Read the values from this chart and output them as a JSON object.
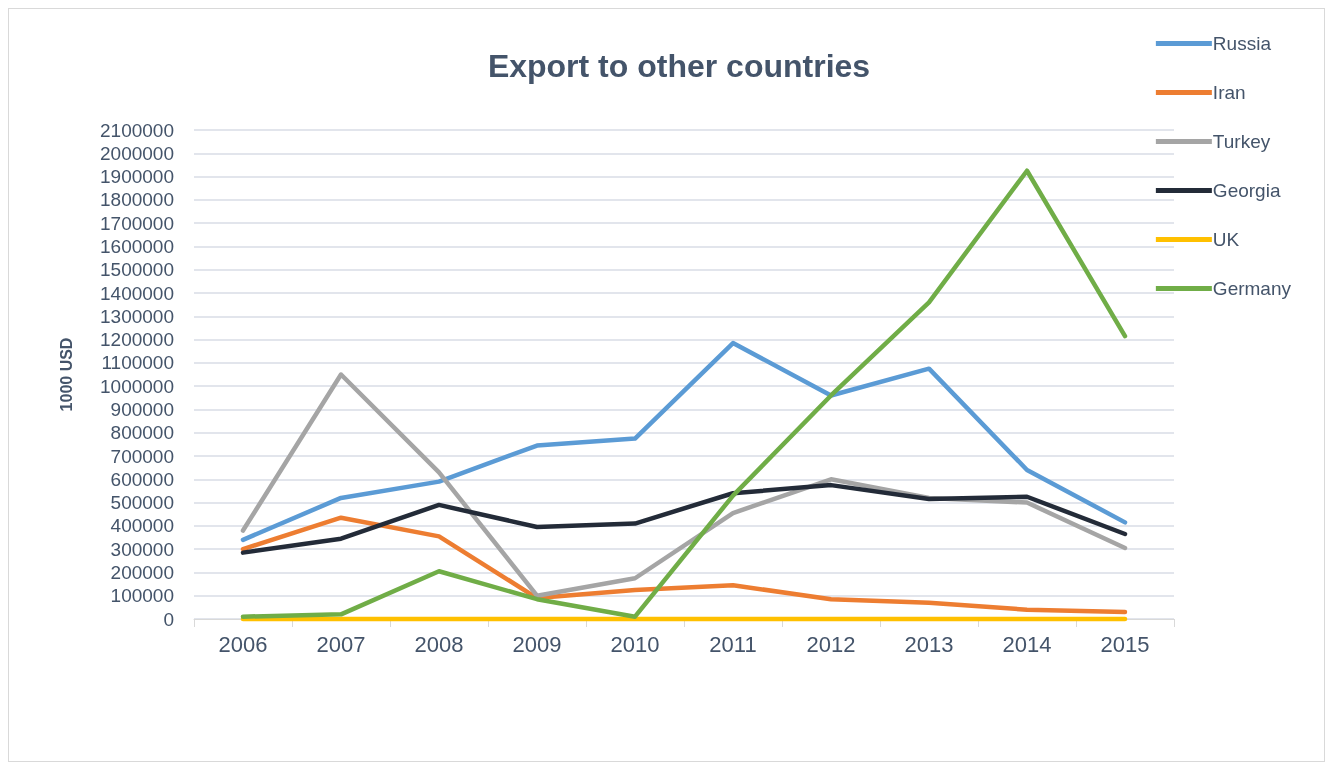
{
  "chart_data": {
    "type": "line",
    "title": "Export to other countries",
    "ylabel": "1000 USD",
    "categories": [
      "2006",
      "2007",
      "2008",
      "2009",
      "2010",
      "2011",
      "2012",
      "2013",
      "2014",
      "2015"
    ],
    "series": [
      {
        "name": "Russia",
        "color": "#5b9bd5",
        "values": [
          340000,
          520000,
          590000,
          745000,
          775000,
          1185000,
          960000,
          1075000,
          640000,
          415000
        ]
      },
      {
        "name": "Iran",
        "color": "#ed7d31",
        "values": [
          300000,
          435000,
          355000,
          90000,
          125000,
          145000,
          85000,
          70000,
          40000,
          30000
        ]
      },
      {
        "name": "Turkey",
        "color": "#a5a5a5",
        "values": [
          380000,
          1050000,
          630000,
          100000,
          175000,
          455000,
          600000,
          520000,
          500000,
          305000
        ]
      },
      {
        "name": "Georgia",
        "color": "#232b38",
        "values": [
          285000,
          345000,
          490000,
          395000,
          410000,
          540000,
          575000,
          515000,
          525000,
          365000
        ]
      },
      {
        "name": "UK",
        "color": "#ffc000",
        "values": [
          0,
          0,
          0,
          0,
          0,
          0,
          0,
          0,
          0,
          0
        ]
      },
      {
        "name": "Germany",
        "color": "#70ad47",
        "values": [
          10000,
          20000,
          205000,
          85000,
          10000,
          530000,
          960000,
          1360000,
          1925000,
          1215000
        ]
      }
    ],
    "ylim": [
      0,
      2100000
    ],
    "yticks": [
      0,
      100000,
      200000,
      300000,
      400000,
      500000,
      600000,
      700000,
      800000,
      900000,
      1000000,
      1100000,
      1200000,
      1300000,
      1400000,
      1500000,
      1600000,
      1700000,
      1800000,
      1900000,
      2000000,
      2100000
    ],
    "grid": "y",
    "legend": "top right",
    "marker": "none",
    "line_style": "solid"
  }
}
